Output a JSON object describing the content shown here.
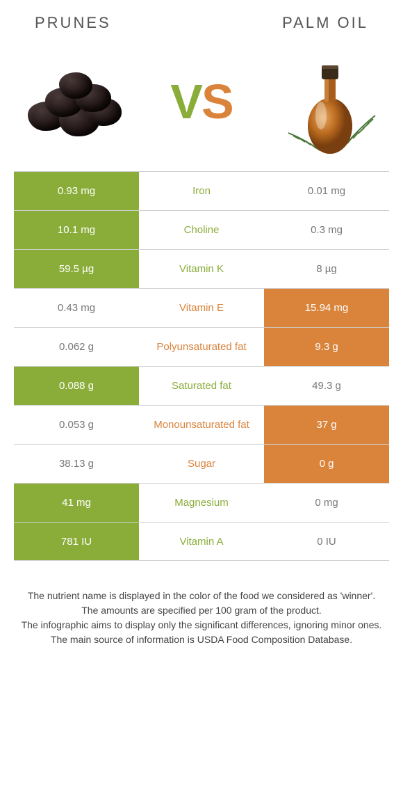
{
  "header": {
    "left_title": "Prunes",
    "right_title": "Palm oil",
    "vs_v": "V",
    "vs_s": "S"
  },
  "colors": {
    "left_win_bg": "#8aad3a",
    "right_win_bg": "#d9833b",
    "border": "#d0d0d0",
    "text_muted": "#777777"
  },
  "rows": [
    {
      "nutrient": "Iron",
      "left": "0.93 mg",
      "right": "0.01 mg",
      "winner": "left"
    },
    {
      "nutrient": "Choline",
      "left": "10.1 mg",
      "right": "0.3 mg",
      "winner": "left"
    },
    {
      "nutrient": "Vitamin K",
      "left": "59.5 µg",
      "right": "8 µg",
      "winner": "left"
    },
    {
      "nutrient": "Vitamin E",
      "left": "0.43 mg",
      "right": "15.94 mg",
      "winner": "right"
    },
    {
      "nutrient": "Polyunsaturated fat",
      "left": "0.062 g",
      "right": "9.3 g",
      "winner": "right"
    },
    {
      "nutrient": "Saturated fat",
      "left": "0.088 g",
      "right": "49.3 g",
      "winner": "left"
    },
    {
      "nutrient": "Monounsaturated fat",
      "left": "0.053 g",
      "right": "37 g",
      "winner": "right"
    },
    {
      "nutrient": "Sugar",
      "left": "38.13 g",
      "right": "0 g",
      "winner": "right"
    },
    {
      "nutrient": "Magnesium",
      "left": "41 mg",
      "right": "0 mg",
      "winner": "left"
    },
    {
      "nutrient": "Vitamin A",
      "left": "781 IU",
      "right": "0 IU",
      "winner": "left"
    }
  ],
  "footer": {
    "line1": "The nutrient name is displayed in the color of the food we considered as 'winner'.",
    "line2": "The amounts are specified per 100 gram of the product.",
    "line3": "The infographic aims to display only the significant differences, ignoring minor ones.",
    "line4": "The main source of information is USDA Food Composition Database."
  }
}
